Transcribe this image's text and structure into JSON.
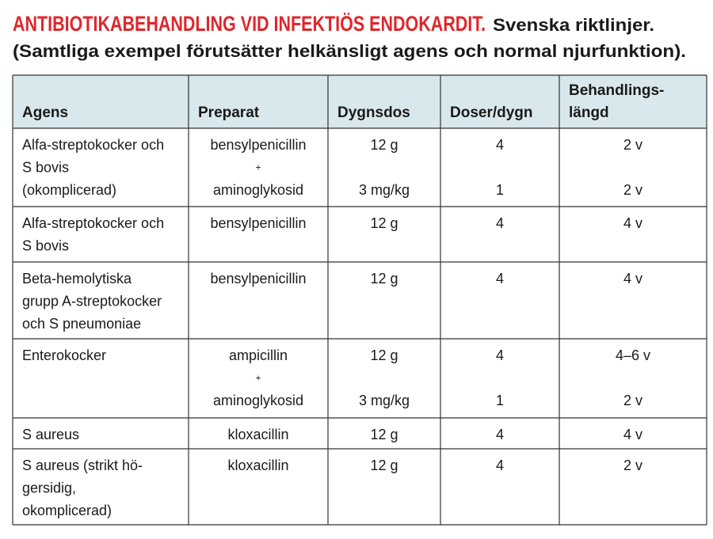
{
  "header": {
    "title": "ANTIBIOTIKABEHANDLING VID INFEKTIÖS ENDOKARDIT.",
    "subtitle": "Svenska riktlinjer.",
    "note": "(Samtliga exempel förutsätter helkänsligt agens och normal njurfunktion)."
  },
  "table": {
    "columns": [
      [
        "Agens"
      ],
      [
        "Preparat"
      ],
      [
        "Dygnsdos"
      ],
      [
        "Doser/dygn"
      ],
      [
        "Behandlings-",
        "längd"
      ]
    ],
    "rows": [
      {
        "agens": [
          "Alfa-streptokocker och",
          "S bovis",
          "(okomplicerad)"
        ],
        "preparat": [
          "bensylpenicillin",
          "+",
          "aminoglykosid"
        ],
        "dygnsdos": [
          "12 g",
          "3 mg/kg"
        ],
        "doser": [
          "4",
          "1"
        ],
        "langd": [
          "2 v",
          "2 v"
        ]
      },
      {
        "agens": [
          "Alfa-streptokocker och",
          "S bovis"
        ],
        "preparat": [
          "bensylpenicillin"
        ],
        "dygnsdos": [
          "12 g"
        ],
        "doser": [
          "4"
        ],
        "langd": [
          "4 v"
        ]
      },
      {
        "agens": [
          "Beta-hemolytiska",
          "grupp A-streptokocker",
          "och S pneumoniae"
        ],
        "preparat": [
          "bensylpenicillin"
        ],
        "dygnsdos": [
          "12 g"
        ],
        "doser": [
          "4"
        ],
        "langd": [
          "4 v"
        ]
      },
      {
        "agens": [
          "Enterokocker"
        ],
        "preparat": [
          "ampicillin",
          "+",
          "aminoglykosid"
        ],
        "dygnsdos": [
          "12 g",
          "3 mg/kg"
        ],
        "doser": [
          "4",
          "1"
        ],
        "langd": [
          "4–6 v",
          "2 v"
        ]
      },
      {
        "agens": [
          "S aureus"
        ],
        "preparat": [
          "kloxacillin"
        ],
        "dygnsdos": [
          "12 g"
        ],
        "doser": [
          "4"
        ],
        "langd": [
          "4 v"
        ]
      },
      {
        "agens": [
          "S aureus (strikt hö-",
          "gersidig,",
          "okomplicerad)"
        ],
        "preparat": [
          "kloxacillin"
        ],
        "dygnsdos": [
          "12 g"
        ],
        "doser": [
          "4"
        ],
        "langd": [
          "2 v"
        ]
      }
    ]
  }
}
